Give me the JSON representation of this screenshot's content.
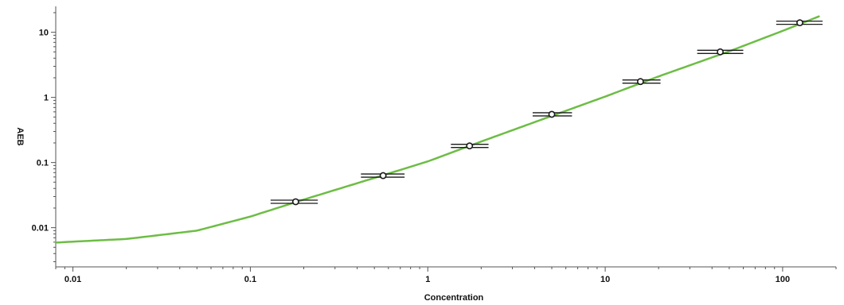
{
  "chart_data": {
    "type": "scatter",
    "title": "",
    "xlabel": "Concentration",
    "ylabel": "AEB",
    "x_scale": "log",
    "y_scale": "log",
    "xlim": [
      0.008,
      200
    ],
    "ylim": [
      0.0025,
      25
    ],
    "x_tick_labels": [
      "0.01",
      "0.1",
      "1",
      "10",
      "100"
    ],
    "x_tick_values": [
      0.01,
      0.1,
      1,
      10,
      100
    ],
    "y_tick_labels": [
      "0.01",
      "0.1",
      "1",
      "10"
    ],
    "y_tick_values": [
      0.01,
      0.1,
      1,
      10
    ],
    "grid": false,
    "series": [
      {
        "kind": "points_with_error_bars",
        "x": [
          0.18,
          0.56,
          1.72,
          5.0,
          15.8,
          44.5,
          125.0
        ],
        "y": [
          0.025,
          0.063,
          0.18,
          0.55,
          1.75,
          5.0,
          14.0
        ],
        "x_err_low": [
          0.13,
          0.42,
          1.35,
          3.9,
          12.5,
          33.0,
          92.0
        ],
        "x_err_high": [
          0.24,
          0.74,
          2.2,
          6.5,
          20.5,
          60.0,
          168.0
        ]
      },
      {
        "kind": "fitted_curve",
        "x": [
          0.008,
          0.01,
          0.02,
          0.05,
          0.1,
          0.2,
          0.5,
          1,
          2,
          5,
          10,
          20,
          50,
          100,
          160
        ],
        "y": [
          0.0059,
          0.0061,
          0.0067,
          0.009,
          0.0148,
          0.027,
          0.058,
          0.104,
          0.21,
          0.52,
          1.03,
          2.1,
          5.1,
          10.5,
          17.5
        ]
      }
    ],
    "colors": {
      "curve": "#6dbd45",
      "points": "#1a1a1a",
      "axis": "#555555"
    }
  }
}
